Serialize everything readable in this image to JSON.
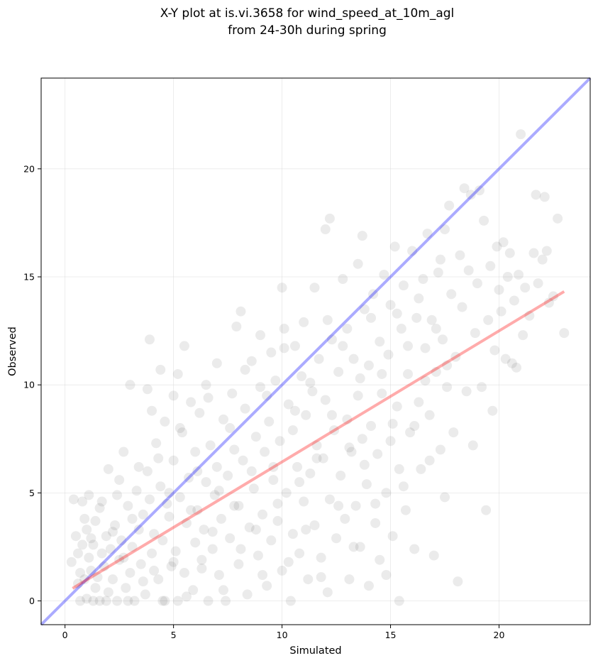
{
  "chart_data": {
    "type": "scatter",
    "title": "X-Y plot at is.vi.3658 for wind_speed_at_10m_agl",
    "subtitle": "from 24-30h during spring",
    "xlabel": "Simulated",
    "ylabel": "Observed",
    "xlim": [
      -1.1,
      24.2
    ],
    "ylim": [
      -1.1,
      24.2
    ],
    "xticks": [
      0,
      5,
      10,
      15,
      20
    ],
    "yticks": [
      0,
      5,
      10,
      15,
      20
    ],
    "xtick_labels": [
      "0",
      "5",
      "10",
      "15",
      "20"
    ],
    "ytick_labels": [
      "0",
      "5",
      "10",
      "15",
      "20"
    ],
    "grid": true,
    "point_color": "#000000",
    "point_opacity": 0.08,
    "reference_lines": [
      {
        "kind": "one-to-one",
        "color": "#0000ff",
        "x": [
          -1.1,
          24.2
        ],
        "y": [
          -1.1,
          24.2
        ]
      },
      {
        "kind": "regression-fit",
        "color": "#ff0000",
        "x": [
          0.35,
          23.0
        ],
        "y": [
          0.58,
          14.32
        ]
      }
    ],
    "points": [
      [
        0.3,
        1.8
      ],
      [
        0.4,
        4.7
      ],
      [
        0.5,
        3.0
      ],
      [
        0.6,
        2.2
      ],
      [
        0.7,
        0.0
      ],
      [
        0.7,
        1.3
      ],
      [
        0.8,
        4.6
      ],
      [
        0.8,
        2.6
      ],
      [
        0.9,
        1.0
      ],
      [
        1.0,
        3.3
      ],
      [
        1.0,
        0.1
      ],
      [
        1.1,
        4.9
      ],
      [
        1.1,
        2.0
      ],
      [
        1.2,
        1.4
      ],
      [
        1.3,
        0.0
      ],
      [
        1.3,
        2.6
      ],
      [
        1.4,
        3.7
      ],
      [
        1.5,
        1.1
      ],
      [
        1.6,
        4.3
      ],
      [
        1.6,
        0.0
      ],
      [
        1.7,
        2.2
      ],
      [
        1.8,
        1.6
      ],
      [
        1.9,
        3.0
      ],
      [
        2.0,
        6.1
      ],
      [
        2.0,
        0.4
      ],
      [
        2.1,
        2.4
      ],
      [
        2.2,
        1.0
      ],
      [
        2.3,
        3.5
      ],
      [
        2.4,
        0.0
      ],
      [
        2.5,
        5.6
      ],
      [
        2.5,
        1.9
      ],
      [
        2.6,
        2.8
      ],
      [
        2.7,
        6.9
      ],
      [
        2.8,
        0.6
      ],
      [
        2.9,
        4.4
      ],
      [
        3.0,
        1.3
      ],
      [
        3.0,
        10.0
      ],
      [
        3.1,
        2.5
      ],
      [
        3.2,
        0.0
      ],
      [
        3.3,
        5.1
      ],
      [
        3.4,
        3.3
      ],
      [
        3.5,
        1.7
      ],
      [
        3.6,
        4.0
      ],
      [
        3.7,
        0.3
      ],
      [
        3.8,
        6.0
      ],
      [
        3.8,
        9.8
      ],
      [
        3.9,
        12.1
      ],
      [
        4.0,
        2.2
      ],
      [
        4.0,
        8.8
      ],
      [
        4.1,
        3.1
      ],
      [
        4.2,
        7.3
      ],
      [
        4.3,
        1.0
      ],
      [
        4.4,
        5.3
      ],
      [
        4.4,
        10.7
      ],
      [
        4.5,
        2.8
      ],
      [
        4.6,
        0.0
      ],
      [
        4.6,
        8.3
      ],
      [
        4.7,
        4.5
      ],
      [
        4.8,
        3.9
      ],
      [
        4.9,
        1.6
      ],
      [
        5.0,
        6.5
      ],
      [
        5.0,
        9.5
      ],
      [
        5.1,
        2.3
      ],
      [
        5.2,
        0.0
      ],
      [
        5.2,
        10.5
      ],
      [
        5.3,
        4.8
      ],
      [
        5.4,
        7.8
      ],
      [
        5.5,
        11.8
      ],
      [
        5.5,
        1.3
      ],
      [
        5.6,
        3.6
      ],
      [
        5.7,
        5.7
      ],
      [
        5.8,
        9.2
      ],
      [
        5.9,
        0.5
      ],
      [
        6.0,
        2.7
      ],
      [
        6.0,
        6.9
      ],
      [
        6.1,
        4.2
      ],
      [
        6.2,
        8.7
      ],
      [
        6.3,
        1.9
      ],
      [
        6.4,
        3.3
      ],
      [
        6.5,
        10.0
      ],
      [
        6.5,
        5.5
      ],
      [
        6.6,
        0.0
      ],
      [
        6.7,
        7.2
      ],
      [
        6.8,
        2.4
      ],
      [
        6.9,
        4.9
      ],
      [
        7.0,
        11.0
      ],
      [
        7.0,
        6.2
      ],
      [
        7.1,
        1.2
      ],
      [
        7.2,
        3.8
      ],
      [
        7.3,
        8.4
      ],
      [
        7.4,
        0.0
      ],
      [
        7.5,
        5.8
      ],
      [
        7.6,
        2.9
      ],
      [
        7.7,
        9.6
      ],
      [
        7.8,
        7.0
      ],
      [
        7.9,
        12.7
      ],
      [
        8.0,
        1.7
      ],
      [
        8.0,
        4.4
      ],
      [
        8.1,
        13.4
      ],
      [
        8.2,
        6.5
      ],
      [
        8.3,
        8.9
      ],
      [
        8.4,
        0.3
      ],
      [
        8.5,
        3.4
      ],
      [
        8.6,
        11.1
      ],
      [
        8.7,
        5.2
      ],
      [
        8.8,
        7.6
      ],
      [
        8.9,
        2.1
      ],
      [
        9.0,
        9.9
      ],
      [
        9.0,
        12.3
      ],
      [
        9.1,
        4.0
      ],
      [
        9.2,
        6.9
      ],
      [
        9.3,
        0.7
      ],
      [
        9.4,
        8.3
      ],
      [
        9.5,
        2.8
      ],
      [
        9.5,
        11.5
      ],
      [
        9.6,
        5.6
      ],
      [
        9.7,
        10.2
      ],
      [
        9.8,
        3.7
      ],
      [
        9.9,
        7.4
      ],
      [
        10.0,
        14.5
      ],
      [
        10.0,
        1.4
      ],
      [
        10.1,
        12.6
      ],
      [
        10.2,
        5.0
      ],
      [
        10.3,
        9.1
      ],
      [
        10.4,
        0.0
      ],
      [
        10.5,
        3.1
      ],
      [
        10.5,
        7.9
      ],
      [
        10.6,
        11.8
      ],
      [
        10.7,
        6.2
      ],
      [
        10.8,
        2.2
      ],
      [
        10.9,
        10.4
      ],
      [
        11.0,
        4.6
      ],
      [
        11.0,
        12.9
      ],
      [
        11.1,
        8.6
      ],
      [
        11.2,
        1.0
      ],
      [
        11.3,
        5.9
      ],
      [
        11.4,
        9.7
      ],
      [
        11.5,
        14.5
      ],
      [
        11.5,
        3.5
      ],
      [
        11.6,
        7.2
      ],
      [
        11.7,
        11.2
      ],
      [
        11.8,
        2.0
      ],
      [
        11.9,
        6.6
      ],
      [
        12.0,
        17.2
      ],
      [
        12.0,
        9.3
      ],
      [
        12.1,
        0.4
      ],
      [
        12.2,
        4.7
      ],
      [
        12.2,
        17.7
      ],
      [
        12.3,
        12.1
      ],
      [
        12.4,
        7.9
      ],
      [
        12.5,
        2.9
      ],
      [
        12.6,
        10.6
      ],
      [
        12.7,
        5.8
      ],
      [
        12.8,
        14.9
      ],
      [
        12.9,
        3.8
      ],
      [
        13.0,
        8.4
      ],
      [
        13.0,
        12.6
      ],
      [
        13.1,
        1.0
      ],
      [
        13.2,
        6.9
      ],
      [
        13.3,
        11.2
      ],
      [
        13.4,
        4.4
      ],
      [
        13.5,
        15.6
      ],
      [
        13.5,
        9.5
      ],
      [
        13.6,
        2.5
      ],
      [
        13.7,
        16.9
      ],
      [
        13.7,
        7.5
      ],
      [
        13.8,
        13.5
      ],
      [
        13.9,
        5.4
      ],
      [
        14.0,
        10.9
      ],
      [
        14.0,
        0.7
      ],
      [
        14.1,
        8.1
      ],
      [
        14.2,
        14.2
      ],
      [
        14.3,
        3.6
      ],
      [
        14.4,
        6.8
      ],
      [
        14.5,
        12.0
      ],
      [
        14.5,
        1.9
      ],
      [
        14.6,
        9.6
      ],
      [
        14.7,
        15.1
      ],
      [
        14.8,
        5.0
      ],
      [
        14.9,
        11.4
      ],
      [
        15.0,
        7.4
      ],
      [
        15.0,
        13.7
      ],
      [
        15.1,
        3.0
      ],
      [
        15.2,
        16.4
      ],
      [
        15.3,
        9.0
      ],
      [
        15.4,
        0.0
      ],
      [
        15.4,
        6.1
      ],
      [
        15.5,
        12.6
      ],
      [
        15.6,
        14.6
      ],
      [
        15.7,
        4.2
      ],
      [
        15.8,
        10.5
      ],
      [
        15.9,
        7.8
      ],
      [
        16.0,
        16.2
      ],
      [
        16.1,
        2.4
      ],
      [
        16.2,
        13.1
      ],
      [
        16.3,
        9.2
      ],
      [
        16.4,
        6.1
      ],
      [
        16.5,
        14.9
      ],
      [
        16.6,
        11.7
      ],
      [
        16.7,
        17.0
      ],
      [
        16.8,
        8.6
      ],
      [
        16.9,
        13.0
      ],
      [
        17.0,
        2.1
      ],
      [
        17.1,
        10.6
      ],
      [
        17.2,
        15.2
      ],
      [
        17.3,
        7.0
      ],
      [
        17.4,
        12.1
      ],
      [
        17.5,
        17.2
      ],
      [
        17.5,
        4.8
      ],
      [
        17.6,
        9.9
      ],
      [
        17.7,
        18.3
      ],
      [
        17.8,
        14.2
      ],
      [
        17.9,
        7.8
      ],
      [
        18.0,
        11.3
      ],
      [
        18.1,
        0.9
      ],
      [
        18.2,
        16.0
      ],
      [
        18.3,
        13.6
      ],
      [
        18.4,
        19.1
      ],
      [
        18.5,
        9.7
      ],
      [
        18.6,
        15.3
      ],
      [
        18.7,
        18.8
      ],
      [
        18.8,
        7.2
      ],
      [
        18.9,
        12.4
      ],
      [
        19.0,
        14.7
      ],
      [
        19.1,
        19.0
      ],
      [
        19.2,
        9.9
      ],
      [
        19.3,
        17.6
      ],
      [
        19.4,
        4.2
      ],
      [
        19.5,
        13.0
      ],
      [
        19.6,
        15.5
      ],
      [
        19.7,
        8.8
      ],
      [
        19.8,
        11.6
      ],
      [
        19.9,
        16.4
      ],
      [
        20.0,
        14.4
      ],
      [
        20.1,
        13.4
      ],
      [
        20.2,
        16.6
      ],
      [
        20.3,
        11.2
      ],
      [
        20.4,
        15.0
      ],
      [
        20.5,
        16.1
      ],
      [
        20.6,
        11.0
      ],
      [
        20.7,
        13.9
      ],
      [
        20.8,
        10.8
      ],
      [
        20.9,
        15.1
      ],
      [
        21.0,
        21.6
      ],
      [
        21.1,
        12.3
      ],
      [
        21.2,
        14.5
      ],
      [
        21.4,
        13.2
      ],
      [
        21.6,
        16.1
      ],
      [
        21.7,
        18.8
      ],
      [
        21.8,
        14.7
      ],
      [
        22.0,
        15.8
      ],
      [
        22.1,
        18.7
      ],
      [
        22.2,
        16.2
      ],
      [
        22.3,
        13.8
      ],
      [
        22.5,
        14.1
      ],
      [
        22.7,
        17.7
      ],
      [
        23.0,
        12.4
      ],
      [
        0.6,
        0.8
      ],
      [
        0.9,
        3.8
      ],
      [
        1.2,
        2.9
      ],
      [
        1.4,
        0.6
      ],
      [
        1.7,
        4.6
      ],
      [
        1.9,
        0.0
      ],
      [
        2.2,
        3.2
      ],
      [
        2.4,
        4.9
      ],
      [
        2.7,
        2.0
      ],
      [
        2.9,
        0.0
      ],
      [
        3.1,
        3.8
      ],
      [
        3.4,
        6.2
      ],
      [
        3.6,
        0.9
      ],
      [
        3.9,
        4.7
      ],
      [
        4.1,
        1.4
      ],
      [
        4.3,
        6.6
      ],
      [
        4.5,
        0.0
      ],
      [
        4.8,
        5.0
      ],
      [
        5.0,
        1.8
      ],
      [
        5.3,
        8.0
      ],
      [
        5.6,
        0.2
      ],
      [
        5.8,
        4.2
      ],
      [
        6.1,
        6.0
      ],
      [
        6.3,
        1.5
      ],
      [
        6.6,
        9.4
      ],
      [
        6.8,
        3.2
      ],
      [
        7.1,
        5.1
      ],
      [
        7.3,
        0.5
      ],
      [
        7.6,
        8.0
      ],
      [
        7.8,
        4.4
      ],
      [
        8.1,
        2.4
      ],
      [
        8.3,
        10.7
      ],
      [
        8.6,
        6.0
      ],
      [
        8.8,
        3.3
      ],
      [
        9.1,
        1.2
      ],
      [
        9.3,
        9.5
      ],
      [
        9.6,
        6.2
      ],
      [
        9.8,
        4.5
      ],
      [
        10.1,
        11.7
      ],
      [
        10.3,
        1.8
      ],
      [
        10.6,
        8.8
      ],
      [
        10.8,
        5.5
      ],
      [
        11.1,
        3.3
      ],
      [
        11.3,
        10.1
      ],
      [
        11.6,
        6.6
      ],
      [
        11.8,
        1.1
      ],
      [
        12.1,
        13.0
      ],
      [
        12.3,
        8.6
      ],
      [
        12.6,
        4.4
      ],
      [
        12.8,
        11.8
      ],
      [
        13.1,
        7.1
      ],
      [
        13.3,
        2.5
      ],
      [
        13.6,
        10.3
      ],
      [
        13.8,
        6.3
      ],
      [
        14.1,
        13.1
      ],
      [
        14.3,
        4.5
      ],
      [
        14.6,
        10.5
      ],
      [
        14.8,
        1.2
      ],
      [
        15.1,
        8.2
      ],
      [
        15.3,
        13.3
      ],
      [
        15.6,
        5.3
      ],
      [
        15.8,
        11.8
      ],
      [
        16.1,
        8.1
      ],
      [
        16.3,
        14.0
      ],
      [
        16.6,
        10.2
      ],
      [
        16.8,
        6.5
      ],
      [
        17.1,
        12.6
      ],
      [
        17.3,
        15.8
      ],
      [
        17.6,
        10.9
      ]
    ]
  }
}
